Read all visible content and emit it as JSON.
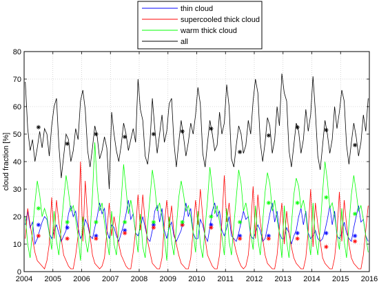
{
  "chart_data": {
    "type": "line",
    "xlabel": "",
    "ylabel": "cloud fraction [%]",
    "xlim": [
      2004,
      2016
    ],
    "ylim": [
      0,
      80
    ],
    "x_ticks": [
      "2004",
      "2005",
      "2006",
      "2007",
      "2008",
      "2009",
      "2010",
      "2011",
      "2012",
      "2013",
      "2014",
      "2015",
      "2016"
    ],
    "y_ticks": [
      "0",
      "10",
      "20",
      "30",
      "40",
      "50",
      "60",
      "70",
      "80"
    ],
    "grid": true,
    "legend_position": "top-center",
    "series": [
      {
        "name": "thin cloud",
        "color": "#0000ff",
        "monthly": [
          17,
          22,
          16,
          18,
          10,
          12,
          15,
          18,
          20,
          19,
          14,
          12,
          15,
          17,
          14,
          11,
          13,
          15,
          21,
          24,
          20,
          22,
          16,
          12,
          14,
          19,
          17,
          13,
          12,
          16,
          20,
          25,
          21,
          23,
          15,
          12,
          17,
          16,
          13,
          11,
          14,
          17,
          21,
          26,
          19,
          21,
          14,
          13,
          16,
          20,
          16,
          12,
          11,
          15,
          22,
          24,
          18,
          23,
          15,
          12,
          16,
          18,
          13,
          11,
          13,
          15,
          19,
          25,
          20,
          23,
          14,
          12,
          12,
          19,
          17,
          13,
          11,
          16,
          22,
          25,
          20,
          22,
          15,
          13,
          16,
          20,
          13,
          12,
          11,
          14,
          18,
          22,
          19,
          20,
          13,
          12,
          14,
          17,
          15,
          11,
          12,
          16,
          21,
          25,
          18,
          22,
          14,
          12,
          12,
          16,
          14,
          10,
          13,
          15,
          20,
          23,
          17,
          22,
          14,
          12,
          13,
          15,
          12,
          11,
          12,
          15,
          19,
          24,
          17,
          22,
          13,
          12,
          14,
          18,
          14,
          12,
          11,
          16,
          20,
          24,
          18,
          19,
          13,
          11
        ],
        "means": [
          [
            2004.5,
            17
          ],
          [
            2005.5,
            16
          ],
          [
            2006.5,
            13
          ],
          [
            2007.5,
            15
          ],
          [
            2008.5,
            17
          ],
          [
            2009.5,
            17
          ],
          [
            2010.5,
            17
          ],
          [
            2011.5,
            13
          ],
          [
            2012.5,
            13
          ],
          [
            2013.5,
            14
          ],
          [
            2014.5,
            14
          ],
          [
            2015.5,
            13
          ]
        ]
      },
      {
        "name": "supercooled thick cloud",
        "color": "#ff0000",
        "monthly": [
          12,
          23,
          17,
          12,
          7,
          4,
          3,
          2,
          1,
          4,
          10,
          27,
          12,
          26,
          18,
          12,
          6,
          4,
          2,
          1,
          1,
          6,
          13,
          40,
          11,
          33,
          19,
          13,
          6,
          3,
          2,
          1,
          2,
          5,
          14,
          25,
          13,
          20,
          15,
          10,
          6,
          4,
          2,
          1,
          1,
          7,
          15,
          28,
          15,
          28,
          18,
          11,
          7,
          3,
          2,
          1,
          1,
          5,
          17,
          26,
          16,
          24,
          14,
          10,
          6,
          3,
          2,
          1,
          1,
          5,
          15,
          26,
          17,
          30,
          20,
          12,
          6,
          4,
          2,
          1,
          1,
          6,
          18,
          35,
          18,
          25,
          15,
          11,
          7,
          4,
          2,
          1,
          2,
          6,
          16,
          31,
          12,
          28,
          18,
          12,
          6,
          3,
          2,
          1,
          1,
          6,
          16,
          25,
          10,
          22,
          14,
          9,
          5,
          3,
          2,
          1,
          1,
          5,
          15,
          30,
          9,
          25,
          17,
          11,
          5,
          3,
          2,
          1,
          1,
          5,
          14,
          29,
          11,
          26,
          17,
          10,
          5,
          3,
          2,
          1,
          1,
          6,
          15,
          24
        ],
        "means": [
          [
            2004.5,
            13
          ],
          [
            2005.5,
            12
          ],
          [
            2006.5,
            12
          ],
          [
            2007.5,
            14
          ],
          [
            2008.5,
            16
          ],
          [
            2009.5,
            17
          ],
          [
            2010.5,
            16
          ],
          [
            2011.5,
            12
          ],
          [
            2012.5,
            12
          ],
          [
            2013.5,
            12
          ],
          [
            2014.5,
            9
          ],
          [
            2015.5,
            11
          ]
        ]
      },
      {
        "name": "warm thick cloud",
        "color": "#00ff00",
        "monthly": [
          20,
          10,
          5,
          15,
          25,
          33,
          28,
          20,
          23,
          20,
          14,
          8,
          22,
          11,
          6,
          16,
          26,
          35,
          29,
          22,
          24,
          19,
          13,
          4,
          20,
          12,
          7,
          14,
          28,
          47,
          31,
          22,
          25,
          18,
          12,
          6,
          22,
          10,
          6,
          16,
          26,
          39,
          30,
          21,
          26,
          21,
          14,
          7,
          21,
          9,
          5,
          17,
          27,
          37,
          31,
          22,
          25,
          20,
          13,
          4,
          20,
          11,
          6,
          16,
          27,
          33,
          28,
          22,
          24,
          20,
          14,
          7,
          22,
          10,
          5,
          16,
          26,
          38,
          30,
          21,
          24,
          18,
          13,
          6,
          23,
          11,
          6,
          17,
          27,
          37,
          32,
          22,
          25,
          20,
          14,
          8,
          24,
          12,
          6,
          18,
          29,
          36,
          32,
          22,
          26,
          19,
          14,
          5,
          24,
          11,
          5,
          17,
          28,
          34,
          31,
          23,
          26,
          21,
          13,
          6,
          25,
          12,
          6,
          16,
          29,
          40,
          33,
          23,
          25,
          20,
          14,
          8,
          23,
          11,
          5,
          17,
          28,
          35,
          29,
          22,
          24,
          19,
          13,
          7
        ],
        "means": [
          [
            2004.5,
            23
          ],
          [
            2005.5,
            18
          ],
          [
            2006.5,
            18
          ],
          [
            2007.5,
            18
          ],
          [
            2008.5,
            18
          ],
          [
            2009.5,
            18
          ],
          [
            2010.5,
            20
          ],
          [
            2011.5,
            18
          ],
          [
            2012.5,
            25
          ],
          [
            2013.5,
            25
          ],
          [
            2014.5,
            27
          ],
          [
            2015.5,
            21
          ]
        ]
      },
      {
        "name": "all",
        "color": "#000000",
        "monthly": [
          69,
          52,
          44,
          48,
          40,
          45,
          51,
          45,
          52,
          50,
          42,
          53,
          60,
          63,
          46,
          34,
          42,
          50,
          48,
          40,
          44,
          52,
          48,
          62,
          66,
          59,
          44,
          38,
          45,
          53,
          49,
          41,
          44,
          49,
          45,
          30,
          58,
          50,
          44,
          40,
          46,
          54,
          50,
          44,
          48,
          52,
          47,
          70,
          59,
          55,
          42,
          39,
          47,
          63,
          52,
          43,
          50,
          57,
          47,
          51,
          61,
          63,
          47,
          38,
          47,
          55,
          49,
          42,
          47,
          54,
          50,
          57,
          67,
          61,
          43,
          38,
          47,
          55,
          50,
          44,
          46,
          58,
          50,
          54,
          68,
          60,
          41,
          38,
          46,
          53,
          50,
          43,
          46,
          55,
          50,
          62,
          70,
          65,
          47,
          40,
          47,
          56,
          53,
          43,
          48,
          60,
          53,
          72,
          65,
          62,
          44,
          38,
          46,
          54,
          51,
          43,
          48,
          59,
          51,
          57,
          71,
          58,
          42,
          37,
          46,
          55,
          50,
          43,
          48,
          60,
          52,
          58,
          66,
          62,
          46,
          39,
          47,
          54,
          49,
          42,
          47,
          57,
          51,
          63
        ],
        "means": [
          [
            2004.5,
            52.5
          ],
          [
            2005.5,
            46.5
          ],
          [
            2006.5,
            50
          ],
          [
            2007.5,
            49
          ],
          [
            2008.5,
            50
          ],
          [
            2009.5,
            51
          ],
          [
            2010.5,
            52
          ],
          [
            2011.5,
            43.5
          ],
          [
            2012.5,
            49.5
          ],
          [
            2013.5,
            52.5
          ],
          [
            2014.5,
            51.5
          ],
          [
            2015.5,
            46
          ]
        ]
      }
    ]
  }
}
